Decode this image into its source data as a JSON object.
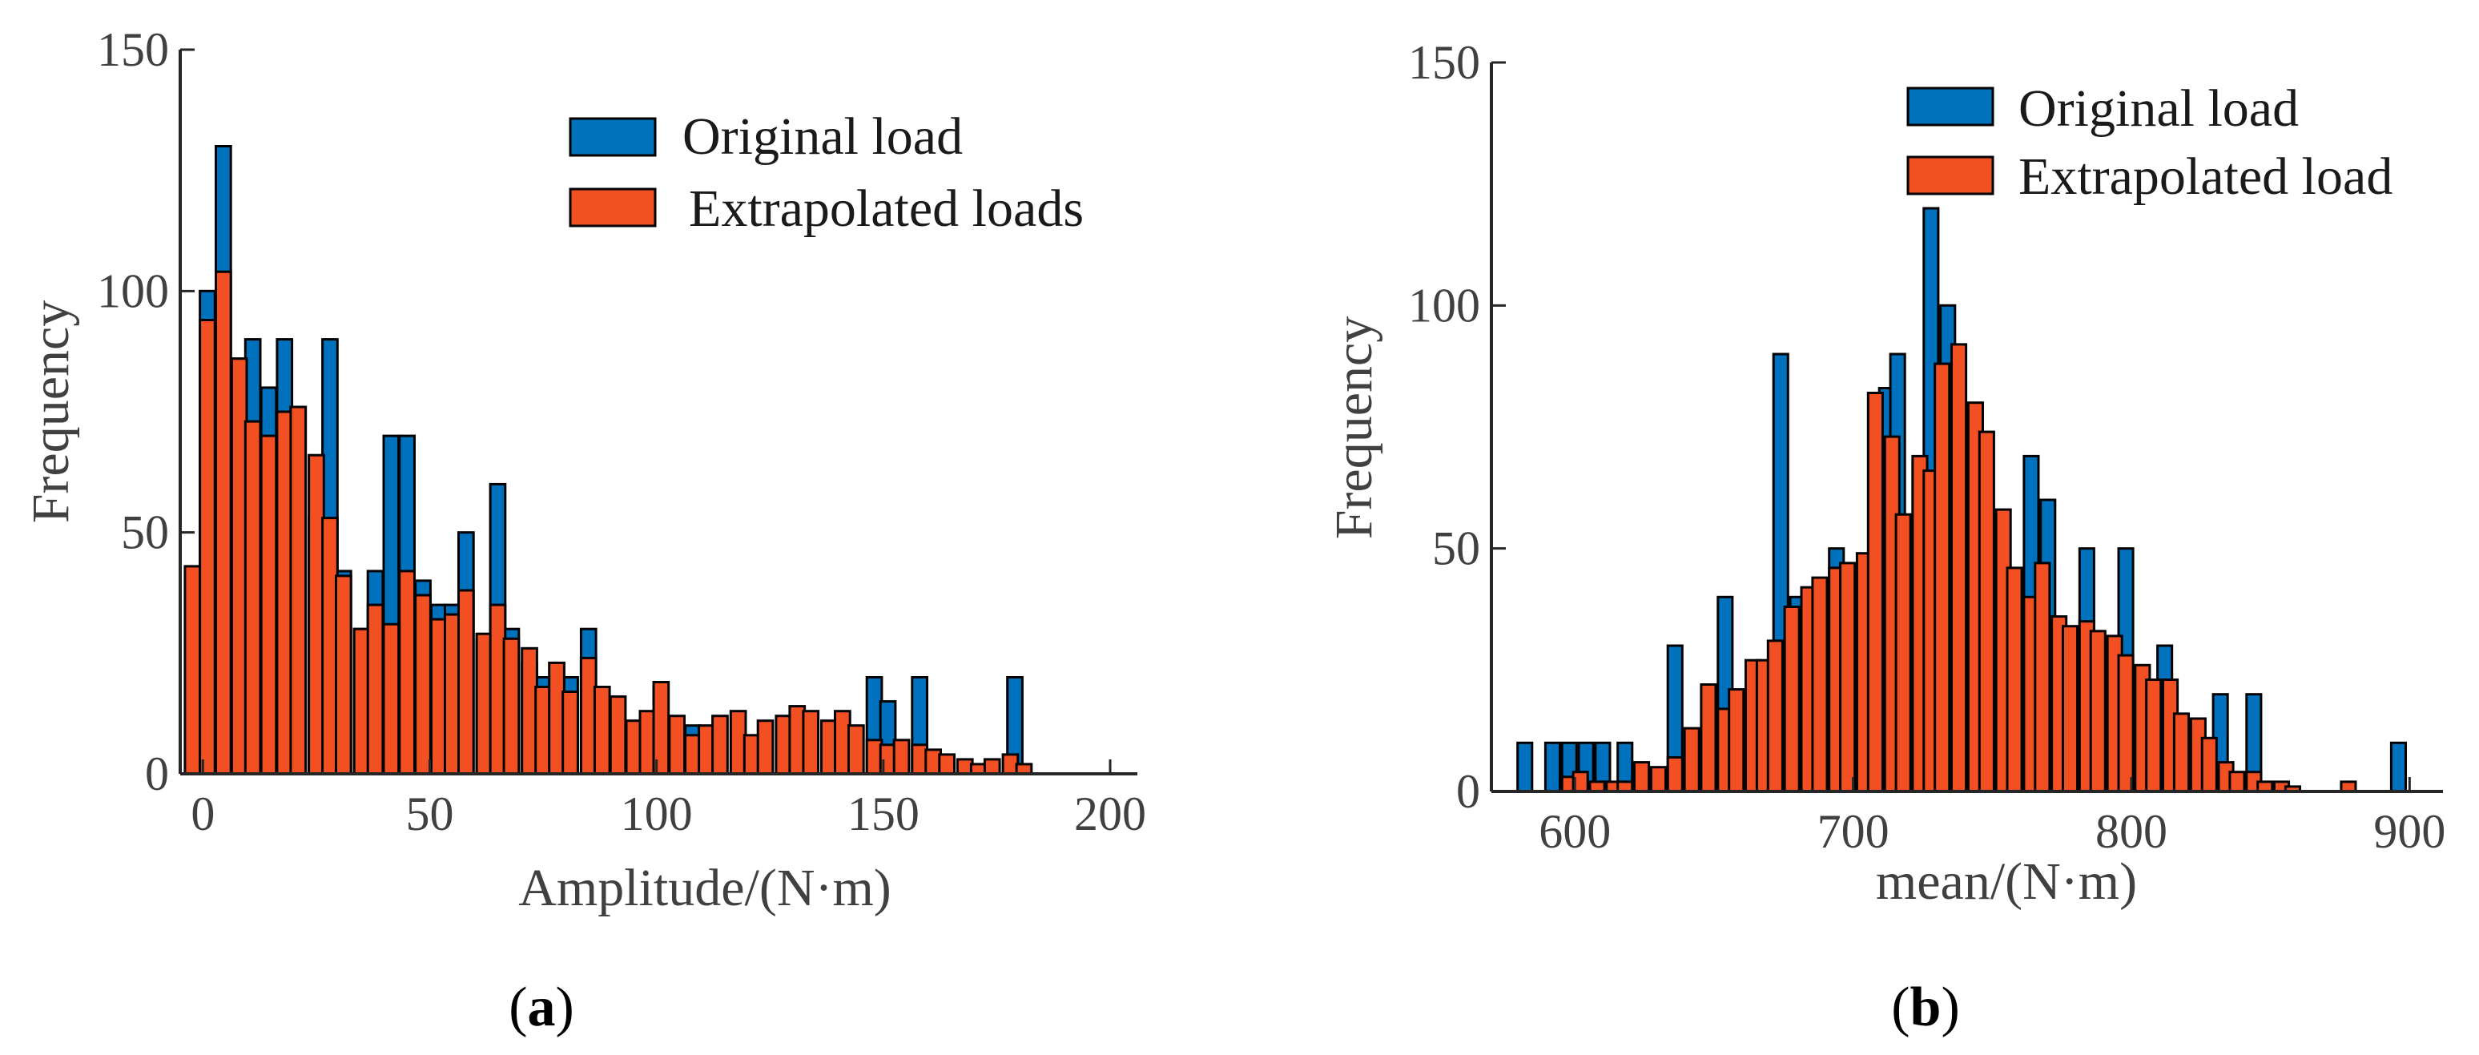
{
  "chart_data": [
    {
      "type": "bar",
      "panel": "(a)",
      "panel_letter": "a",
      "xlabel": "Amplitude/(N·m)",
      "ylabel": "Frequency",
      "xlim": [
        -5,
        206
      ],
      "ylim": [
        0,
        150
      ],
      "xticks": [
        0,
        50,
        100,
        150,
        200
      ],
      "yticks": [
        0,
        50,
        100,
        150
      ],
      "bin_width": 3.3,
      "legend": [
        "Original load",
        "Extrapolated loads"
      ],
      "legend_position": "top-right",
      "series": [
        {
          "name": "Original load",
          "color": "#0072BD",
          "points": [
            [
              1,
              100
            ],
            [
              4.5,
              130
            ],
            [
              8,
              86
            ],
            [
              11,
              90
            ],
            [
              14.5,
              80
            ],
            [
              18,
              90
            ],
            [
              21,
              76
            ],
            [
              25,
              53
            ],
            [
              28,
              90
            ],
            [
              31,
              42
            ],
            [
              35,
              30
            ],
            [
              38,
              42
            ],
            [
              41.5,
              70
            ],
            [
              45,
              70
            ],
            [
              48.5,
              40
            ],
            [
              52,
              35
            ],
            [
              55,
              35
            ],
            [
              58,
              50
            ],
            [
              62,
              28
            ],
            [
              65,
              60
            ],
            [
              68,
              30
            ],
            [
              72,
              23
            ],
            [
              75,
              20
            ],
            [
              81,
              20
            ],
            [
              85,
              30
            ],
            [
              108,
              10
            ],
            [
              148,
              20
            ],
            [
              151,
              15
            ],
            [
              158,
              20
            ],
            [
              179,
              20
            ]
          ]
        },
        {
          "name": "Extrapolated loads",
          "color": "#F25022",
          "points": [
            [
              -2.3,
              43
            ],
            [
              1,
              94
            ],
            [
              4.5,
              104
            ],
            [
              8,
              86
            ],
            [
              11,
              73
            ],
            [
              14.5,
              70
            ],
            [
              18,
              75
            ],
            [
              21,
              76
            ],
            [
              25,
              66
            ],
            [
              28,
              53
            ],
            [
              31,
              41
            ],
            [
              35,
              30
            ],
            [
              38,
              35
            ],
            [
              41.5,
              31
            ],
            [
              45,
              42
            ],
            [
              48.5,
              37
            ],
            [
              52,
              32
            ],
            [
              55,
              33
            ],
            [
              58,
              38
            ],
            [
              62,
              29
            ],
            [
              65,
              35
            ],
            [
              68,
              28
            ],
            [
              72,
              26
            ],
            [
              75,
              18
            ],
            [
              78,
              23
            ],
            [
              81,
              17
            ],
            [
              85,
              24
            ],
            [
              88,
              18
            ],
            [
              91.5,
              16
            ],
            [
              95,
              11
            ],
            [
              98,
              13
            ],
            [
              101,
              19
            ],
            [
              104.5,
              12
            ],
            [
              108,
              8
            ],
            [
              111,
              10
            ],
            [
              114,
              12
            ],
            [
              118,
              13
            ],
            [
              121,
              8
            ],
            [
              124,
              11
            ],
            [
              128,
              12
            ],
            [
              131,
              14
            ],
            [
              134,
              13
            ],
            [
              138,
              11
            ],
            [
              141,
              13
            ],
            [
              144,
              10
            ],
            [
              148,
              7
            ],
            [
              151,
              6
            ],
            [
              154,
              7
            ],
            [
              158,
              6
            ],
            [
              161,
              5
            ],
            [
              164,
              4
            ],
            [
              168,
              3
            ],
            [
              171,
              2
            ],
            [
              174,
              3
            ],
            [
              178,
              4
            ],
            [
              181,
              2
            ]
          ]
        }
      ]
    },
    {
      "type": "bar",
      "panel": "(b)",
      "panel_letter": "b",
      "xlabel": "mean/(N·m)",
      "ylabel": "Frequency",
      "xlim": [
        570,
        912
      ],
      "ylim": [
        0,
        150
      ],
      "xticks": [
        600,
        700,
        800,
        900
      ],
      "yticks": [
        0,
        50,
        100,
        150
      ],
      "bin_width": 5.2,
      "legend": [
        "Original load",
        "Extrapolated load"
      ],
      "legend_position": "top-right",
      "series": [
        {
          "name": "Original load",
          "color": "#0072BD",
          "points": [
            [
              582,
              10
            ],
            [
              592,
              10
            ],
            [
              598,
              10
            ],
            [
              604,
              10
            ],
            [
              610,
              10
            ],
            [
              618,
              10
            ],
            [
              636,
              30
            ],
            [
              654,
              40
            ],
            [
              674,
              90
            ],
            [
              680,
              40
            ],
            [
              684,
              40
            ],
            [
              694,
              50
            ],
            [
              704,
              43
            ],
            [
              712,
              83
            ],
            [
              716,
              90
            ],
            [
              724,
              68
            ],
            [
              728,
              120
            ],
            [
              734,
              100
            ],
            [
              744,
              69
            ],
            [
              756,
              37
            ],
            [
              764,
              69
            ],
            [
              770,
              60
            ],
            [
              784,
              50
            ],
            [
              798,
              50
            ],
            [
              806,
              20
            ],
            [
              812,
              30
            ],
            [
              832,
              20
            ],
            [
              844,
              20
            ],
            [
              896,
              10
            ]
          ]
        },
        {
          "name": "Extrapolated load",
          "color": "#F25022",
          "points": [
            [
              598,
              3
            ],
            [
              602,
              4
            ],
            [
              608,
              2
            ],
            [
              614,
              2
            ],
            [
              618,
              2
            ],
            [
              624,
              6
            ],
            [
              630,
              5
            ],
            [
              636,
              7
            ],
            [
              642,
              13
            ],
            [
              648,
              22
            ],
            [
              654,
              17
            ],
            [
              658,
              21
            ],
            [
              664,
              27
            ],
            [
              668,
              27
            ],
            [
              672,
              31
            ],
            [
              678,
              38
            ],
            [
              684,
              42
            ],
            [
              688,
              44
            ],
            [
              694,
              46
            ],
            [
              698,
              47
            ],
            [
              704,
              49
            ],
            [
              708,
              82
            ],
            [
              714,
              73
            ],
            [
              718,
              57
            ],
            [
              724,
              69
            ],
            [
              728,
              66
            ],
            [
              732,
              88
            ],
            [
              738,
              92
            ],
            [
              744,
              80
            ],
            [
              748,
              74
            ],
            [
              754,
              58
            ],
            [
              758,
              46
            ],
            [
              764,
              40
            ],
            [
              768,
              47
            ],
            [
              774,
              36
            ],
            [
              778,
              34
            ],
            [
              784,
              35
            ],
            [
              788,
              33
            ],
            [
              794,
              32
            ],
            [
              798,
              28
            ],
            [
              804,
              26
            ],
            [
              808,
              23
            ],
            [
              814,
              23
            ],
            [
              818,
              16
            ],
            [
              824,
              15
            ],
            [
              828,
              11
            ],
            [
              834,
              6
            ],
            [
              838,
              4
            ],
            [
              844,
              4
            ],
            [
              848,
              2
            ],
            [
              854,
              2
            ],
            [
              858,
              1
            ],
            [
              878,
              2
            ]
          ]
        }
      ]
    }
  ]
}
